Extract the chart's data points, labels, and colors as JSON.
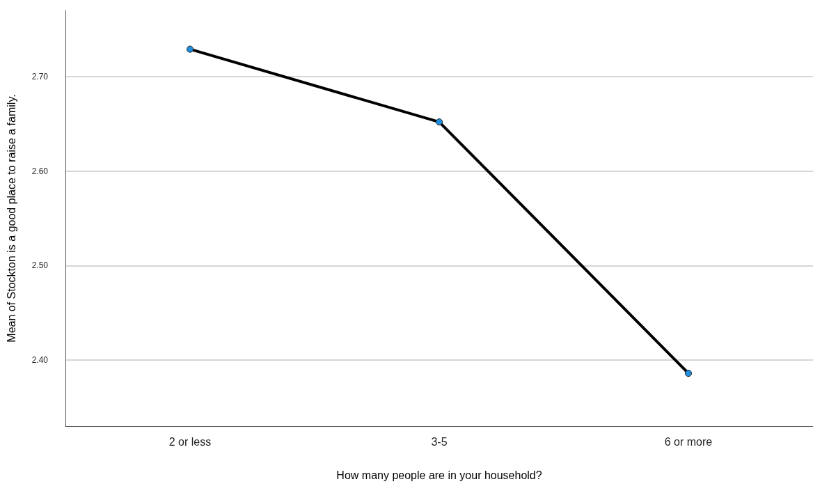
{
  "chart_data": {
    "type": "line",
    "xlabel": "How many people are in your household?",
    "ylabel": "Mean of Stockton is a good place to raise a family.",
    "categories": [
      "2 or less",
      "3-5",
      "6 or more"
    ],
    "series": [
      {
        "color": "#000000",
        "values": [
          2.729,
          2.652,
          2.386
        ]
      }
    ],
    "ylim": [
      2.33,
      2.77
    ],
    "yticks": [
      {
        "value": 2.4,
        "label": "2.40"
      },
      {
        "value": 2.5,
        "label": "2.50"
      },
      {
        "value": 2.6,
        "label": "2.60"
      },
      {
        "value": 2.7,
        "label": "2.70"
      }
    ],
    "grid": "y",
    "marker": "circle",
    "line_style": "solid"
  }
}
